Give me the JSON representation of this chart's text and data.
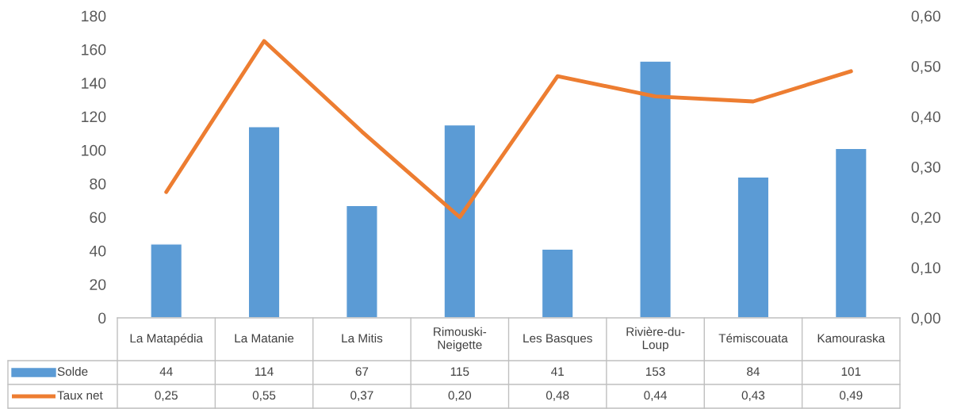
{
  "chart_data": {
    "type": "bar",
    "categories": [
      "La Matapédia",
      "La Matanie",
      "La Mitis",
      "Rimouski-Neigette",
      "Les Basques",
      "Rivière-du-Loup",
      "Témiscouata",
      "Kamouraska"
    ],
    "series": [
      {
        "name": "Solde",
        "color": "#5b9bd5",
        "values": [
          44,
          114,
          67,
          115,
          41,
          153,
          84,
          101
        ],
        "value_labels": [
          "44",
          "114",
          "67",
          "115",
          "41",
          "153",
          "84",
          "101"
        ]
      },
      {
        "name": "Taux net",
        "type": "line",
        "axis": "y2",
        "color": "#ed7d31",
        "values": [
          0.25,
          0.55,
          0.37,
          0.2,
          0.48,
          0.44,
          0.43,
          0.49
        ],
        "value_labels": [
          "0,25",
          "0,55",
          "0,37",
          "0,20",
          "0,48",
          "0,44",
          "0,43",
          "0,49"
        ]
      }
    ],
    "ylim": [
      0,
      180
    ],
    "yticks": [
      0,
      20,
      40,
      60,
      80,
      100,
      120,
      140,
      160,
      180
    ],
    "y2lim": [
      0,
      0.6
    ],
    "y2ticks": [
      {
        "value": 0,
        "label": "0,00"
      },
      {
        "value": 0.1,
        "label": "0,10"
      },
      {
        "value": 0.2,
        "label": "0,20"
      },
      {
        "value": 0.3,
        "label": "0,30"
      },
      {
        "value": 0.4,
        "label": "0,40"
      },
      {
        "value": 0.5,
        "label": "0,50"
      },
      {
        "value": 0.6,
        "label": "0,60"
      }
    ],
    "grid": false,
    "legend": "bottom left",
    "marker": "none",
    "line_style": "solid"
  }
}
